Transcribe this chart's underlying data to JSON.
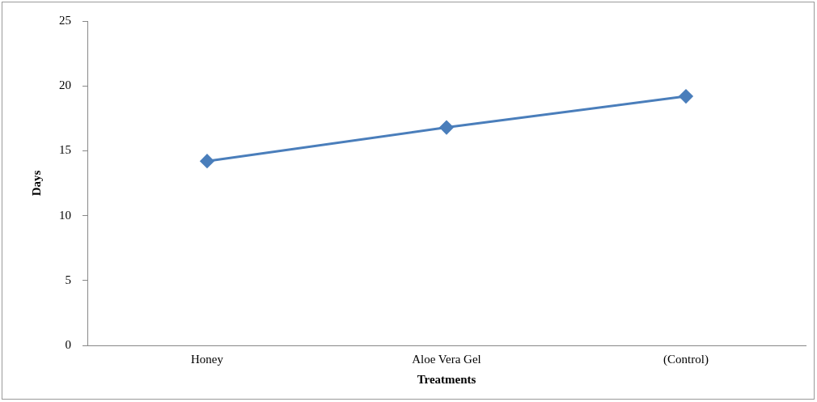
{
  "chart_data": {
    "type": "line",
    "xlabel": "Treatments",
    "ylabel": "Days",
    "categories": [
      "Honey",
      "Aloe Vera Gel",
      "(Control)"
    ],
    "series": [
      {
        "color": "#4a7ebb",
        "values": [
          14.2,
          16.8,
          19.2
        ]
      }
    ],
    "ylim": [
      0,
      25
    ],
    "yticks": [
      0,
      5,
      10,
      15,
      20,
      25
    ],
    "grid": false,
    "legend": false,
    "marker": "diamond",
    "line_style": "solid"
  }
}
